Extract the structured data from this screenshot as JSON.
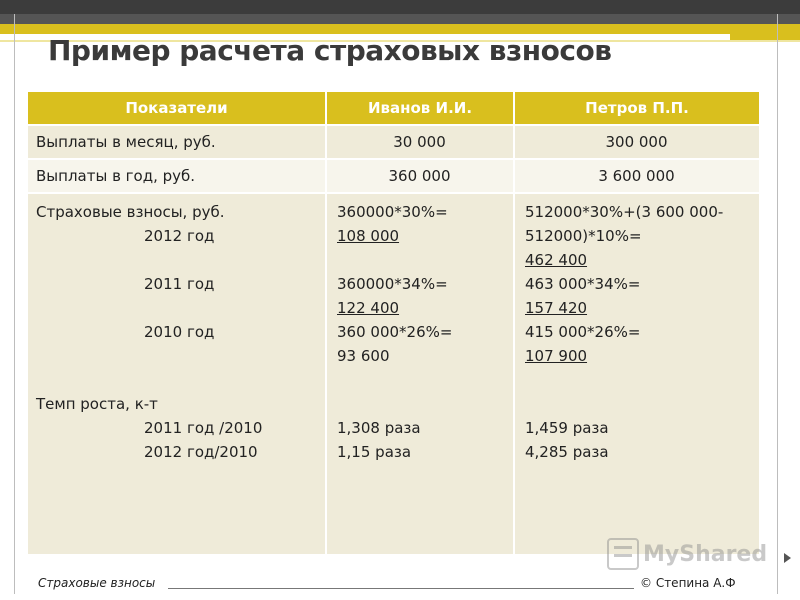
{
  "title": "Пример расчета страховых взносов",
  "table": {
    "headers": [
      "Показатели",
      "Иванов И.И.",
      "Петров П.П."
    ],
    "row_monthly": {
      "label": "Выплаты в месяц,  руб.",
      "ivanov": "30 000",
      "petrov": "300 000"
    },
    "row_yearly": {
      "label": "Выплаты в год, руб.",
      "ivanov": "360 000",
      "petrov": "3 600 000"
    },
    "details": {
      "label": {
        "main": "Страховые взносы, руб.",
        "y2012": "2012 год",
        "y2011": "2011 год",
        "y2010": "2010 год",
        "growth": "Темп роста, к-т",
        "g2011": "2011 год /2010",
        "g2012": "2012 год/2010"
      },
      "ivanov": {
        "f2012": "360000*30%=",
        "v2012": "108 000",
        "f2011": "360000*34%=",
        "v2011": "122 400",
        "f2010": "360 000*26%=",
        "v2010": "93 600",
        "g2011": "1,308 раза",
        "g2012": "1,15 раза"
      },
      "petrov": {
        "f2012a": "512000*30%+(3 600 000-",
        "f2012b": "512000)*10%=",
        "v2012": "462 400",
        "f2011": "463 000*34%=",
        "v2011": "157 420",
        "f2010": "415 000*26%=",
        "v2010": "107 900",
        "g2011": "1,459 раза",
        "g2012": "4,285 раза"
      }
    }
  },
  "footer": {
    "left": "Страховые взносы",
    "author": "© Степина А.Ф"
  },
  "watermark": "MyShared",
  "colors": {
    "accent": "#d9bf1e",
    "dark_band": "#3c3c3c",
    "row_light": "#efebd9",
    "row_lighter": "#f7f5ec"
  }
}
